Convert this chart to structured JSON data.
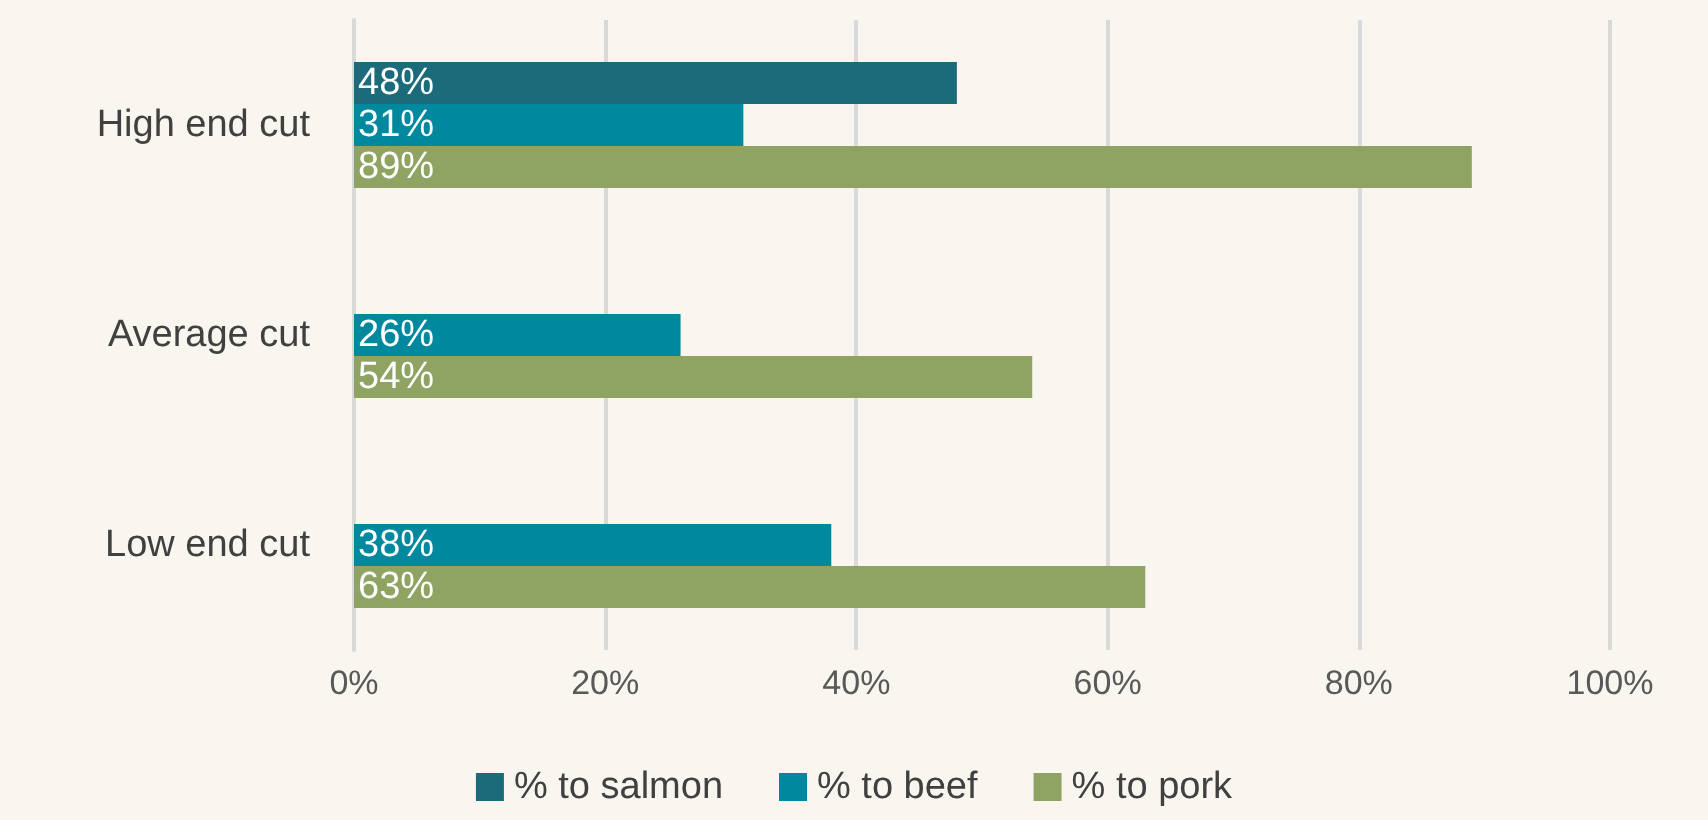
{
  "chart_data": {
    "type": "bar",
    "orientation": "horizontal",
    "categories": [
      "High end cut",
      "Average cut",
      "Low end cut"
    ],
    "series": [
      {
        "name": "% to salmon",
        "color": "#1b6b7b",
        "values": [
          48,
          null,
          null
        ],
        "value_labels": [
          "48%",
          null,
          null
        ]
      },
      {
        "name": "% to beef",
        "color": "#00889e",
        "values": [
          31,
          26,
          38
        ],
        "value_labels": [
          "31%",
          "26%",
          "38%"
        ]
      },
      {
        "name": "% to pork",
        "color": "#8fa463",
        "values": [
          89,
          54,
          63
        ],
        "value_labels": [
          "89%",
          "54%",
          "63%"
        ]
      }
    ],
    "xlim": [
      0,
      100
    ],
    "xticks": [
      {
        "value": 0,
        "label": "0%"
      },
      {
        "value": 20,
        "label": "20%"
      },
      {
        "value": 40,
        "label": "40%"
      },
      {
        "value": 60,
        "label": "60%"
      },
      {
        "value": 80,
        "label": "80%"
      },
      {
        "value": 100,
        "label": "100%"
      }
    ],
    "grid": "x",
    "legend": "bottom"
  }
}
